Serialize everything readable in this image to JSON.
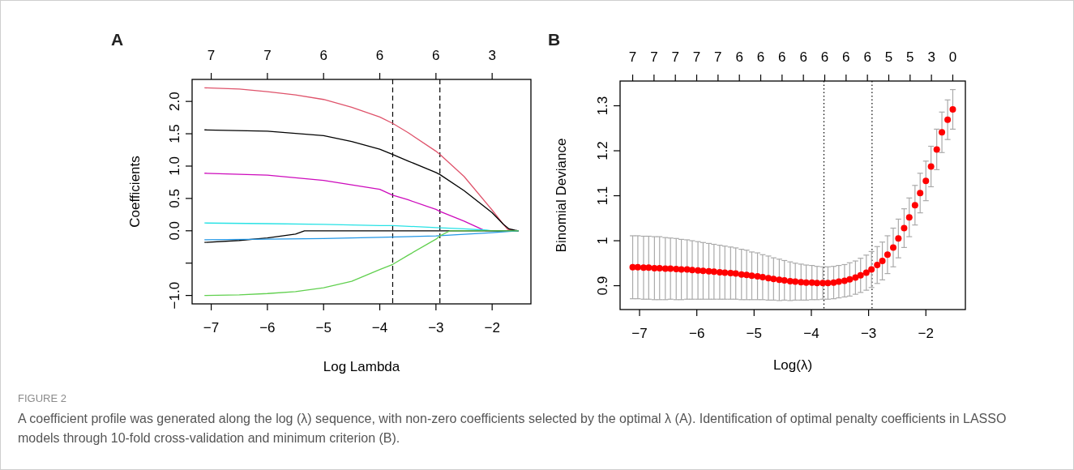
{
  "chart_data": [
    {
      "type": "line",
      "title": "A",
      "xlabel": "Log Lambda",
      "ylabel": "Coefficients",
      "xlim": [
        -7.34,
        -1.31
      ],
      "ylim": [
        -1.13,
        2.34
      ],
      "xticks": [
        {
          "value": -7,
          "label": "−7"
        },
        {
          "value": -6,
          "label": "−6"
        },
        {
          "value": -5,
          "label": "−5"
        },
        {
          "value": -4,
          "label": "−4"
        },
        {
          "value": -3,
          "label": "−3"
        },
        {
          "value": -2,
          "label": "−2"
        }
      ],
      "yticks": [
        {
          "value": -1,
          "label": "−1.0"
        },
        {
          "value": -0.5,
          "label": null
        },
        {
          "value": 0,
          "label": "0.0"
        },
        0.5,
        {
          "value": 1,
          "label": "1.0"
        },
        1.5,
        {
          "value": 2,
          "label": "2.0"
        }
      ],
      "series": [
        {
          "color": "#df536b",
          "x": [
            -7.12,
            -6.5,
            -6,
            -5.5,
            -5,
            -4.5,
            -4,
            -3.77,
            -3.5,
            -3,
            -2.93,
            -2.5,
            -2,
            -1.8,
            -1.72,
            -1.6,
            -1.53
          ],
          "values": [
            2.21,
            2.19,
            2.15,
            2.1,
            2.03,
            1.91,
            1.76,
            1.66,
            1.52,
            1.23,
            1.18,
            0.84,
            0.32,
            0.1,
            0.02,
            0,
            0
          ]
        },
        {
          "color": "#000000",
          "x": [
            -7.12,
            -6,
            -5,
            -4.5,
            -4,
            -3.77,
            -3.5,
            -3,
            -2.93,
            -2.5,
            -2,
            -1.8,
            -1.7,
            -1.6,
            -1.53
          ],
          "values": [
            1.56,
            1.54,
            1.47,
            1.38,
            1.26,
            1.18,
            1.08,
            0.9,
            0.87,
            0.62,
            0.28,
            0.1,
            0.03,
            0.01,
            0
          ]
        },
        {
          "color": "#cd0bbc",
          "x": [
            -7.12,
            -6,
            -5,
            -4,
            -3.77,
            -3.5,
            -3,
            -2.93,
            -2.5,
            -2.2,
            -2.12,
            -1.53
          ],
          "values": [
            0.89,
            0.86,
            0.78,
            0.64,
            0.55,
            0.48,
            0.33,
            0.3,
            0.15,
            0.03,
            0,
            0
          ]
        },
        {
          "color": "#28e2e5",
          "x": [
            -7.12,
            -6,
            -5,
            -4,
            -3.77,
            -3,
            -2.5,
            -2.1,
            -2,
            -1.53
          ],
          "values": [
            0.12,
            0.11,
            0.1,
            0.08,
            0.08,
            0.05,
            0.03,
            0.01,
            0,
            0
          ]
        },
        {
          "color": "#000000",
          "x": [
            -7.12,
            -6.5,
            -6,
            -5.5,
            -5.34,
            -1.53
          ],
          "values": [
            -0.18,
            -0.15,
            -0.11,
            -0.05,
            0,
            0
          ]
        },
        {
          "color": "#2297e6",
          "x": [
            -7.12,
            -6,
            -5,
            -4,
            -3,
            -2,
            -1.7,
            -1.53
          ],
          "values": [
            -0.14,
            -0.13,
            -0.12,
            -0.1,
            -0.08,
            -0.03,
            -0.01,
            0
          ]
        },
        {
          "color": "#61d04f",
          "x": [
            -7.12,
            -6.5,
            -6,
            -5.5,
            -5,
            -4.5,
            -4,
            -3.77,
            -3.5,
            -3,
            -2.93,
            -2.75,
            -1.53
          ],
          "values": [
            -1,
            -0.99,
            -0.97,
            -0.94,
            -0.88,
            -0.78,
            -0.6,
            -0.52,
            -0.38,
            -0.13,
            -0.08,
            0,
            0
          ]
        }
      ],
      "ref_lines": [
        {
          "axis": "x",
          "value": -3.77,
          "line_style": "dashed",
          "color": "#000000"
        },
        {
          "axis": "x",
          "value": -2.93,
          "line_style": "dashed",
          "color": "#000000"
        }
      ],
      "annotations": [
        "7",
        "7",
        "6",
        "6",
        "6",
        "3",
        "FIGURE 2",
        "A coefficient profile was generated along the log (λ) sequence, with non-zero coefficients selected by the optimal λ (A). Identification of optimal penalty coefficients in LASSO models through 10-fold cross-validation and minimum criterion (B)."
      ]
    },
    {
      "type": "scatter",
      "title": "B",
      "xlabel": "Log(λ)",
      "ylabel": "Binomial Deviance",
      "marker": "circle",
      "xlim": [
        -7.34,
        -1.31
      ],
      "ylim": [
        0.847,
        1.355
      ],
      "xticks": [
        {
          "value": -7,
          "label": "−7"
        },
        {
          "value": -6,
          "label": "−6"
        },
        {
          "value": -5,
          "label": "−5"
        },
        {
          "value": -4,
          "label": "−4"
        },
        {
          "value": -3,
          "label": "−3"
        },
        {
          "value": -2,
          "label": "−2"
        }
      ],
      "annotations": [
        "7",
        "7",
        "7",
        "7",
        "7",
        "6",
        "6",
        "6",
        "6",
        "6",
        "6",
        "6",
        "5",
        "5",
        "3",
        "0"
      ],
      "yticks": [
        0.9,
        1.0,
        1.1,
        1.2,
        1.3
      ],
      "series": [
        {
          "color": "#ff0000",
          "x": [
            -7.12,
            -7.03,
            -6.93,
            -6.84,
            -6.74,
            -6.65,
            -6.55,
            -6.46,
            -6.36,
            -6.27,
            -6.17,
            -6.08,
            -5.98,
            -5.89,
            -5.79,
            -5.7,
            -5.6,
            -5.51,
            -5.41,
            -5.32,
            -5.22,
            -5.13,
            -5.04,
            -4.94,
            -4.85,
            -4.75,
            -4.66,
            -4.56,
            -4.47,
            -4.37,
            -4.28,
            -4.18,
            -4.09,
            -3.99,
            -3.9,
            -3.8,
            -3.71,
            -3.61,
            -3.52,
            -3.42,
            -3.33,
            -3.23,
            -3.14,
            -3.04,
            -2.95,
            -2.85,
            -2.76,
            -2.67,
            -2.57,
            -2.48,
            -2.38,
            -2.29,
            -2.19,
            -2.1,
            -2.0,
            -1.91,
            -1.81,
            -1.72,
            -1.62,
            -1.53
          ],
          "values": [
            0.941,
            0.941,
            0.94,
            0.94,
            0.939,
            0.939,
            0.938,
            0.938,
            0.937,
            0.936,
            0.936,
            0.935,
            0.934,
            0.933,
            0.932,
            0.931,
            0.93,
            0.929,
            0.928,
            0.927,
            0.925,
            0.924,
            0.922,
            0.921,
            0.919,
            0.917,
            0.915,
            0.913,
            0.912,
            0.91,
            0.909,
            0.908,
            0.907,
            0.907,
            0.906,
            0.906,
            0.906,
            0.907,
            0.909,
            0.911,
            0.914,
            0.918,
            0.923,
            0.929,
            0.936,
            0.946,
            0.955,
            0.969,
            0.985,
            1.005,
            1.028,
            1.052,
            1.079,
            1.106,
            1.133,
            1.165,
            1.203,
            1.241,
            1.269,
            1.292
          ],
          "errors": [
            0.07,
            0.07,
            0.07,
            0.07,
            0.07,
            0.07,
            0.069,
            0.068,
            0.068,
            0.067,
            0.066,
            0.065,
            0.064,
            0.063,
            0.062,
            0.061,
            0.06,
            0.059,
            0.058,
            0.057,
            0.056,
            0.055,
            0.053,
            0.052,
            0.05,
            0.049,
            0.047,
            0.046,
            0.044,
            0.043,
            0.041,
            0.04,
            0.039,
            0.038,
            0.037,
            0.036,
            0.036,
            0.036,
            0.036,
            0.036,
            0.037,
            0.037,
            0.038,
            0.039,
            0.04,
            0.041,
            0.042,
            0.042,
            0.043,
            0.043,
            0.043,
            0.043,
            0.044,
            0.044,
            0.044,
            0.045,
            0.045,
            0.045,
            0.044,
            0.044
          ]
        }
      ],
      "ref_lines": [
        {
          "axis": "x",
          "value": -3.78,
          "line_style": "dotted",
          "color": "#000000"
        },
        {
          "axis": "x",
          "value": -2.94,
          "line_style": "dotted",
          "color": "#000000"
        }
      ]
    }
  ]
}
